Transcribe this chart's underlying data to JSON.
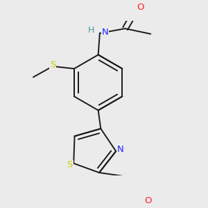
{
  "background_color": "#ebebeb",
  "bond_color": "#1a1a1a",
  "atom_colors": {
    "N": "#2020ff",
    "O": "#ff2020",
    "S": "#cccc00",
    "H": "#4a9a9a"
  },
  "figsize": [
    3.0,
    3.0
  ],
  "dpi": 100
}
